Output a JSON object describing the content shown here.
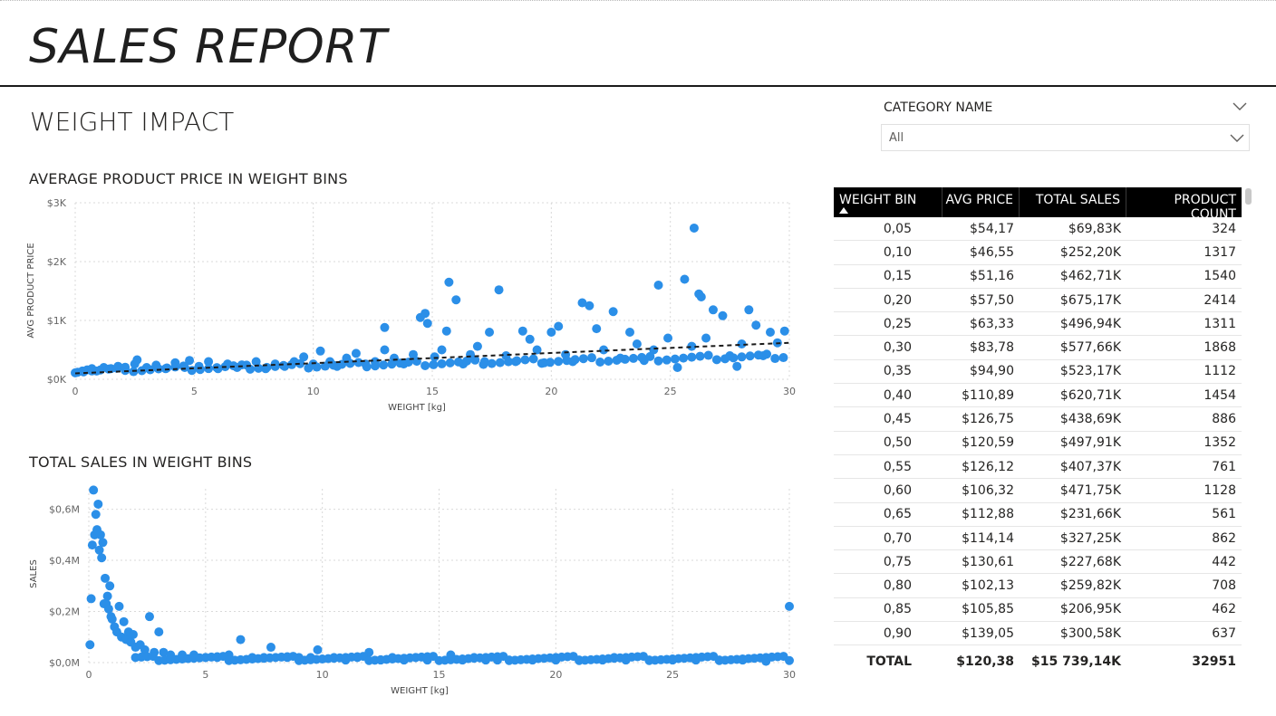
{
  "report": {
    "title": "SALES REPORT",
    "section": "WEIGHT IMPACT"
  },
  "colors": {
    "dot": "#2b8fe8",
    "trend": "#1a1a1a",
    "header_bg": "#000000"
  },
  "slicer": {
    "title": "CATEGORY NAME",
    "value": "All",
    "icons": [
      "chevron-down-icon",
      "chevron-down-icon"
    ]
  },
  "table": {
    "headers": [
      "WEIGHT BIN",
      "AVG PRICE",
      "TOTAL SALES",
      "PRODUCT COUNT"
    ],
    "sort_icon": "sort-ascending-icon",
    "rows": [
      [
        "0,05",
        "$54,17",
        "$69,83K",
        "324"
      ],
      [
        "0,10",
        "$46,55",
        "$252,20K",
        "1317"
      ],
      [
        "0,15",
        "$51,16",
        "$462,71K",
        "1540"
      ],
      [
        "0,20",
        "$57,50",
        "$675,17K",
        "2414"
      ],
      [
        "0,25",
        "$63,33",
        "$496,94K",
        "1311"
      ],
      [
        "0,30",
        "$83,78",
        "$577,66K",
        "1868"
      ],
      [
        "0,35",
        "$94,90",
        "$523,17K",
        "1112"
      ],
      [
        "0,40",
        "$110,89",
        "$620,71K",
        "1454"
      ],
      [
        "0,45",
        "$126,75",
        "$438,69K",
        "886"
      ],
      [
        "0,50",
        "$120,59",
        "$497,91K",
        "1352"
      ],
      [
        "0,55",
        "$126,12",
        "$407,37K",
        "761"
      ],
      [
        "0,60",
        "$106,32",
        "$471,75K",
        "1128"
      ],
      [
        "0,65",
        "$112,88",
        "$231,66K",
        "561"
      ],
      [
        "0,70",
        "$114,14",
        "$327,25K",
        "862"
      ],
      [
        "0,75",
        "$130,61",
        "$227,68K",
        "442"
      ],
      [
        "0,80",
        "$102,13",
        "$259,82K",
        "708"
      ],
      [
        "0,85",
        "$105,85",
        "$206,95K",
        "462"
      ],
      [
        "0,90",
        "$139,05",
        "$300,58K",
        "637"
      ]
    ],
    "total": [
      "TOTAL",
      "$120,38",
      "$15 739,14K",
      "32951"
    ]
  },
  "chart_data": [
    {
      "type": "scatter",
      "title": "AVERAGE PRODUCT PRICE IN WEIGHT BINS",
      "xlabel": "WEIGHT [kg]",
      "ylabel": "AVG PRODUCT PRICE",
      "xlim": [
        0,
        30
      ],
      "ylim": [
        0,
        3000
      ],
      "x_ticks": [
        0,
        5,
        10,
        15,
        20,
        25,
        30
      ],
      "x_tick_labels": [
        "0",
        "5",
        "10",
        "15",
        "20",
        "25",
        "30"
      ],
      "y_ticks": [
        0,
        1000,
        2000,
        3000
      ],
      "y_tick_labels": [
        "$0K",
        "$1K",
        "$2K",
        "$3K"
      ],
      "grid": true,
      "trendline": {
        "from": [
          0,
          100
        ],
        "to": [
          30,
          620
        ]
      },
      "series": [
        {
          "values": [
            [
              0.1,
              120
            ],
            [
              0.3,
              140
            ],
            [
              0.5,
              160
            ],
            [
              0.7,
              180
            ],
            [
              0.9,
              140
            ],
            [
              1.2,
              200
            ],
            [
              1.5,
              180
            ],
            [
              1.8,
              220
            ],
            [
              2.1,
              150
            ],
            [
              2.5,
              260
            ],
            [
              2.6,
              330
            ],
            [
              3.0,
              200
            ],
            [
              3.4,
              240
            ],
            [
              3.8,
              180
            ],
            [
              4.2,
              280
            ],
            [
              4.6,
              200
            ],
            [
              4.8,
              320
            ],
            [
              5.2,
              220
            ],
            [
              5.6,
              300
            ],
            [
              6.0,
              180
            ],
            [
              6.4,
              260
            ],
            [
              6.8,
              200
            ],
            [
              7.2,
              240
            ],
            [
              7.6,
              300
            ],
            [
              8.0,
              180
            ],
            [
              8.4,
              260
            ],
            [
              8.8,
              220
            ],
            [
              9.2,
              300
            ],
            [
              9.6,
              380
            ],
            [
              10.0,
              260
            ],
            [
              10.3,
              480
            ],
            [
              10.7,
              300
            ],
            [
              11.0,
              220
            ],
            [
              11.4,
              360
            ],
            [
              11.8,
              440
            ],
            [
              12.2,
              260
            ],
            [
              12.6,
              300
            ],
            [
              13.0,
              500
            ],
            [
              13.0,
              880
            ],
            [
              13.4,
              360
            ],
            [
              13.8,
              260
            ],
            [
              14.2,
              420
            ],
            [
              14.5,
              1050
            ],
            [
              14.7,
              1120
            ],
            [
              14.8,
              950
            ],
            [
              15.1,
              380
            ],
            [
              15.4,
              500
            ],
            [
              15.6,
              820
            ],
            [
              15.7,
              1650
            ],
            [
              16.0,
              1350
            ],
            [
              16.3,
              260
            ],
            [
              16.6,
              420
            ],
            [
              16.9,
              560
            ],
            [
              17.2,
              300
            ],
            [
              17.4,
              800
            ],
            [
              17.8,
              1520
            ],
            [
              18.1,
              400
            ],
            [
              18.5,
              300
            ],
            [
              18.8,
              820
            ],
            [
              19.1,
              680
            ],
            [
              19.4,
              500
            ],
            [
              19.7,
              280
            ],
            [
              20.0,
              800
            ],
            [
              20.3,
              900
            ],
            [
              20.6,
              420
            ],
            [
              20.9,
              300
            ],
            [
              21.3,
              1300
            ],
            [
              21.6,
              1250
            ],
            [
              21.9,
              860
            ],
            [
              22.2,
              500
            ],
            [
              22.6,
              1150
            ],
            [
              22.9,
              360
            ],
            [
              23.3,
              800
            ],
            [
              23.6,
              600
            ],
            [
              23.9,
              320
            ],
            [
              24.3,
              500
            ],
            [
              24.5,
              1600
            ],
            [
              24.9,
              700
            ],
            [
              25.3,
              200
            ],
            [
              25.6,
              1700
            ],
            [
              25.9,
              560
            ],
            [
              26.0,
              2570
            ],
            [
              26.2,
              1450
            ],
            [
              26.3,
              1400
            ],
            [
              26.5,
              700
            ],
            [
              26.8,
              1180
            ],
            [
              27.2,
              1080
            ],
            [
              27.5,
              400
            ],
            [
              27.8,
              220
            ],
            [
              28.0,
              600
            ],
            [
              28.3,
              1180
            ],
            [
              28.6,
              920
            ],
            [
              28.9,
              400
            ],
            [
              29.2,
              800
            ],
            [
              29.5,
              620
            ],
            [
              29.8,
              820
            ]
          ]
        }
      ]
    },
    {
      "type": "scatter",
      "title": "TOTAL SALES IN WEIGHT BINS",
      "xlabel": "WEIGHT [kg]",
      "ylabel": "SALES",
      "xlim": [
        0,
        30
      ],
      "ylim": [
        0,
        0.68
      ],
      "x_ticks": [
        0,
        5,
        10,
        15,
        20,
        25,
        30
      ],
      "x_tick_labels": [
        "0",
        "5",
        "10",
        "15",
        "20",
        "25",
        "30"
      ],
      "y_ticks": [
        0,
        0.2,
        0.4,
        0.6
      ],
      "y_tick_labels": [
        "$0,0M",
        "$0,2M",
        "$0,4M",
        "$0,6M"
      ],
      "grid": true,
      "series": [
        {
          "values": [
            [
              0.05,
              0.07
            ],
            [
              0.1,
              0.25
            ],
            [
              0.15,
              0.46
            ],
            [
              0.2,
              0.675
            ],
            [
              0.25,
              0.5
            ],
            [
              0.3,
              0.58
            ],
            [
              0.35,
              0.52
            ],
            [
              0.4,
              0.62
            ],
            [
              0.45,
              0.44
            ],
            [
              0.5,
              0.5
            ],
            [
              0.55,
              0.41
            ],
            [
              0.6,
              0.47
            ],
            [
              0.65,
              0.23
            ],
            [
              0.7,
              0.33
            ],
            [
              0.75,
              0.23
            ],
            [
              0.8,
              0.26
            ],
            [
              0.85,
              0.21
            ],
            [
              0.9,
              0.3
            ],
            [
              0.95,
              0.18
            ],
            [
              1.0,
              0.17
            ],
            [
              1.1,
              0.14
            ],
            [
              1.2,
              0.12
            ],
            [
              1.3,
              0.22
            ],
            [
              1.4,
              0.1
            ],
            [
              1.5,
              0.16
            ],
            [
              1.6,
              0.09
            ],
            [
              1.7,
              0.12
            ],
            [
              1.8,
              0.08
            ],
            [
              1.9,
              0.11
            ],
            [
              2.0,
              0.06
            ],
            [
              2.2,
              0.07
            ],
            [
              2.4,
              0.05
            ],
            [
              2.6,
              0.18
            ],
            [
              2.8,
              0.04
            ],
            [
              3.0,
              0.12
            ],
            [
              3.2,
              0.04
            ],
            [
              3.5,
              0.03
            ],
            [
              4.0,
              0.03
            ],
            [
              4.5,
              0.03
            ],
            [
              5.0,
              0.02
            ],
            [
              5.5,
              0.02
            ],
            [
              6.0,
              0.03
            ],
            [
              6.5,
              0.09
            ],
            [
              7.0,
              0.02
            ],
            [
              7.5,
              0.02
            ],
            [
              7.8,
              0.06
            ],
            [
              8.5,
              0.02
            ],
            [
              9.0,
              0.02
            ],
            [
              9.5,
              0.02
            ],
            [
              9.8,
              0.05
            ],
            [
              10.5,
              0.02
            ],
            [
              11.0,
              0.01
            ],
            [
              11.5,
              0.02
            ],
            [
              12.0,
              0.04
            ],
            [
              12.5,
              0.01
            ],
            [
              13.0,
              0.02
            ],
            [
              13.5,
              0.01
            ],
            [
              14.0,
              0.02
            ],
            [
              14.5,
              0.01
            ],
            [
              15.5,
              0.03
            ],
            [
              16.0,
              0.01
            ],
            [
              16.5,
              0.02
            ],
            [
              17.0,
              0.01
            ],
            [
              17.5,
              0.01
            ],
            [
              18.0,
              0.01
            ],
            [
              19.0,
              0.01
            ],
            [
              20.0,
              0.01
            ],
            [
              21.0,
              0.01
            ],
            [
              22.0,
              0.01
            ],
            [
              22.5,
              0.02
            ],
            [
              23.0,
              0.01
            ],
            [
              24.0,
              0.01
            ],
            [
              25.0,
              0.01
            ],
            [
              26.0,
              0.01
            ],
            [
              27.0,
              0.01
            ],
            [
              28.0,
              0.01
            ],
            [
              29.0,
              0.005
            ],
            [
              30.0,
              0.22
            ]
          ]
        }
      ]
    }
  ]
}
